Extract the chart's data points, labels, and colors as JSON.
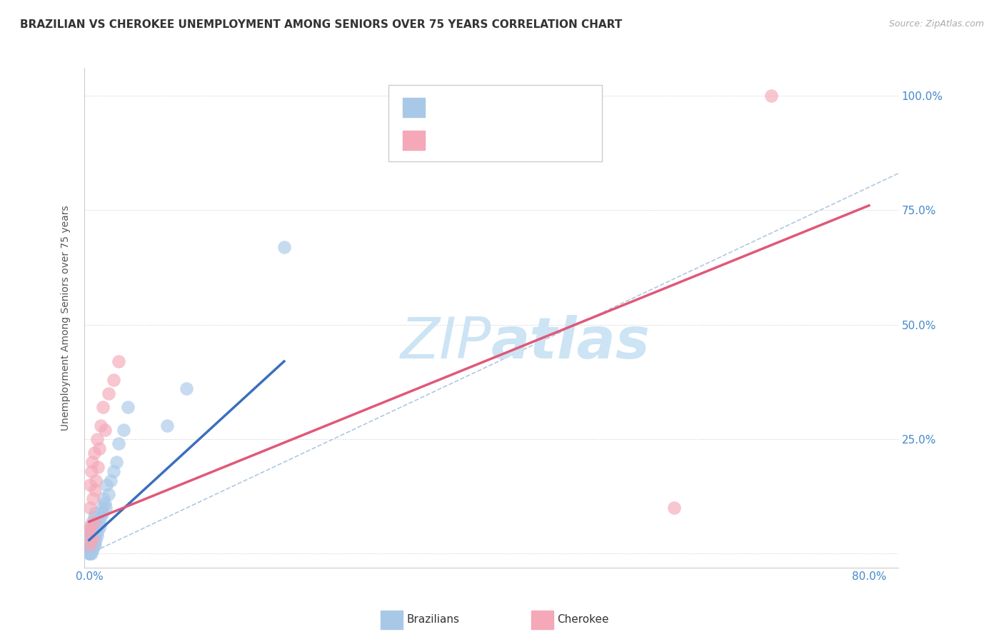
{
  "title": "BRAZILIAN VS CHEROKEE UNEMPLOYMENT AMONG SENIORS OVER 75 YEARS CORRELATION CHART",
  "source": "Source: ZipAtlas.com",
  "ylabel": "Unemployment Among Seniors over 75 years",
  "xlim": [
    -0.005,
    0.83
  ],
  "ylim": [
    -0.03,
    1.06
  ],
  "blue_scatter_color": "#a8c8e8",
  "blue_line_color": "#3a6fbd",
  "pink_scatter_color": "#f4a8b8",
  "pink_line_color": "#e05878",
  "diag_color": "#b0c8e0",
  "watermark_color": "#cce4f4",
  "legend_R_color": "#2166ac",
  "legend_N_color": "#22aa22",
  "tick_color": "#4488cc",
  "blue_x": [
    0.0,
    0.0,
    0.0,
    0.001,
    0.001,
    0.001,
    0.001,
    0.001,
    0.001,
    0.001,
    0.002,
    0.002,
    0.002,
    0.002,
    0.002,
    0.003,
    0.003,
    0.003,
    0.003,
    0.004,
    0.004,
    0.004,
    0.005,
    0.005,
    0.006,
    0.006,
    0.006,
    0.007,
    0.007,
    0.008,
    0.009,
    0.01,
    0.011,
    0.012,
    0.013,
    0.014,
    0.015,
    0.016,
    0.017,
    0.018,
    0.02,
    0.022,
    0.025,
    0.028,
    0.03,
    0.035,
    0.04,
    0.08,
    0.1,
    0.2
  ],
  "blue_y": [
    0.0,
    0.0,
    0.01,
    0.0,
    0.01,
    0.02,
    0.02,
    0.03,
    0.04,
    0.05,
    0.0,
    0.01,
    0.02,
    0.03,
    0.06,
    0.01,
    0.02,
    0.04,
    0.07,
    0.01,
    0.03,
    0.05,
    0.02,
    0.08,
    0.02,
    0.04,
    0.09,
    0.03,
    0.06,
    0.04,
    0.05,
    0.07,
    0.06,
    0.08,
    0.1,
    0.09,
    0.12,
    0.11,
    0.1,
    0.15,
    0.13,
    0.16,
    0.18,
    0.2,
    0.24,
    0.27,
    0.32,
    0.28,
    0.36,
    0.67
  ],
  "pink_x": [
    0.0,
    0.0,
    0.001,
    0.001,
    0.001,
    0.002,
    0.002,
    0.003,
    0.003,
    0.004,
    0.005,
    0.005,
    0.006,
    0.007,
    0.008,
    0.009,
    0.01,
    0.012,
    0.014,
    0.016,
    0.02,
    0.025,
    0.03,
    0.6,
    0.7
  ],
  "pink_y": [
    0.02,
    0.05,
    0.06,
    0.1,
    0.15,
    0.04,
    0.18,
    0.03,
    0.2,
    0.12,
    0.07,
    0.22,
    0.14,
    0.16,
    0.25,
    0.19,
    0.23,
    0.28,
    0.32,
    0.27,
    0.35,
    0.38,
    0.42,
    0.1,
    1.0
  ],
  "blue_line_x0": 0.0,
  "blue_line_x1": 0.2,
  "blue_line_y0": 0.03,
  "blue_line_y1": 0.42,
  "pink_line_x0": 0.0,
  "pink_line_x1": 0.8,
  "pink_line_y0": 0.07,
  "pink_line_y1": 0.76,
  "title_fontsize": 11,
  "source_fontsize": 9,
  "label_fontsize": 10,
  "legend_fontsize": 13,
  "tick_fontsize": 11,
  "marker_size": 180
}
